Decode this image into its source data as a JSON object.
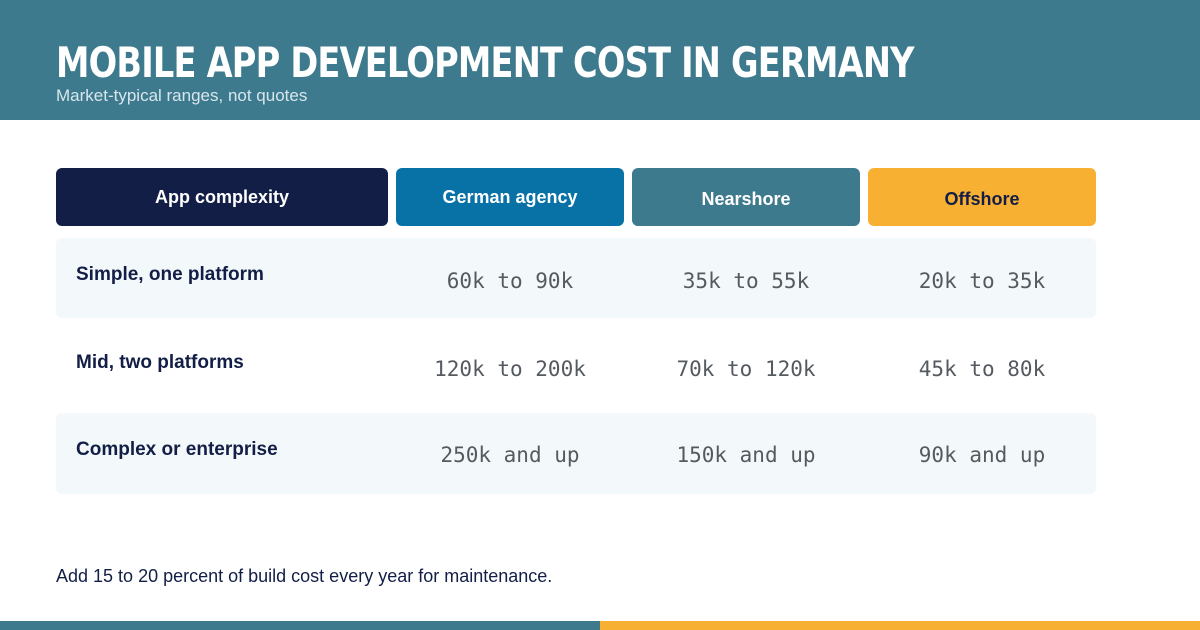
{
  "header": {
    "title": "MOBILE APP DEVELOPMENT COST IN GERMANY",
    "subtitle": "Market-typical ranges, not quotes"
  },
  "table": {
    "columns": [
      "App complexity",
      "German agency",
      "Nearshore",
      "Offshore"
    ],
    "rows": [
      {
        "label": "Simple, one platform",
        "values": [
          "60k to 90k",
          "35k to 55k",
          "20k to 35k"
        ]
      },
      {
        "label": "Mid, two platforms",
        "values": [
          "120k to 200k",
          "70k to 120k",
          "45k to 80k"
        ]
      },
      {
        "label": "Complex or enterprise",
        "values": [
          "250k and up",
          "150k and up",
          "90k and up"
        ]
      }
    ]
  },
  "footnote": "Add 15 to 20 percent of build cost every year for maintenance.",
  "colors": {
    "header_bg": "#3e7a8e",
    "navy": "#121e46",
    "blue": "#0872a6",
    "teal": "#3e7a8e",
    "amber": "#f8b032",
    "row_shade": "#f3f8fa"
  }
}
